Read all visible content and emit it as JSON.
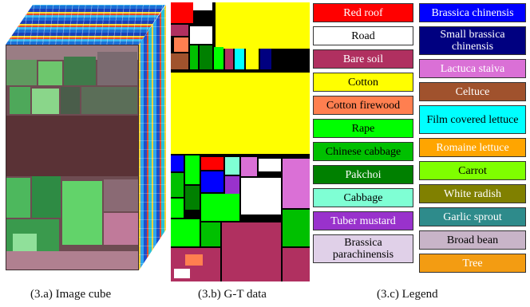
{
  "captions": {
    "a": "(3.a) Image cube",
    "b": "(3.b) G-T data",
    "c": "(3.c) Legend"
  },
  "legend": {
    "left": [
      {
        "label": "Red roof",
        "bg": "#ff0000",
        "fg": "#ffffff"
      },
      {
        "label": "Road",
        "bg": "#ffffff",
        "fg": "#000000"
      },
      {
        "label": "Bare soil",
        "bg": "#b03060",
        "fg": "#ffffff"
      },
      {
        "label": "Cotton",
        "bg": "#ffff00",
        "fg": "#000000"
      },
      {
        "label": "Cotton firewood",
        "bg": "#ff7f50",
        "fg": "#000000"
      },
      {
        "label": "Rape",
        "bg": "#00ff00",
        "fg": "#000000"
      },
      {
        "label": "Chinese cabbage",
        "bg": "#00c000",
        "fg": "#000000"
      },
      {
        "label": "Pakchoi",
        "bg": "#008000",
        "fg": "#ffffff"
      },
      {
        "label": "Cabbage",
        "bg": "#7fffd4",
        "fg": "#000000"
      },
      {
        "label": "Tuber mustard",
        "bg": "#9932cc",
        "fg": "#ffffff"
      },
      {
        "label": "Brassica parachinensis",
        "bg": "#e0d0e8",
        "fg": "#000000"
      }
    ],
    "right": [
      {
        "label": "Brassica chinensis",
        "bg": "#0000ff",
        "fg": "#ffffff"
      },
      {
        "label": "Small brassica chinensis",
        "bg": "#000080",
        "fg": "#ffffff"
      },
      {
        "label": "Lactuca staiva",
        "bg": "#da70d6",
        "fg": "#ffffff"
      },
      {
        "label": "Celtuce",
        "bg": "#a0522d",
        "fg": "#ffffff"
      },
      {
        "label": "Film covered lettuce",
        "bg": "#00ffff",
        "fg": "#000000"
      },
      {
        "label": "Romaine lettuce",
        "bg": "#ffa500",
        "fg": "#ffffff"
      },
      {
        "label": "Carrot",
        "bg": "#7fff00",
        "fg": "#000000"
      },
      {
        "label": "White radish",
        "bg": "#808000",
        "fg": "#ffffff"
      },
      {
        "label": "Garlic sprout",
        "bg": "#2e8b8b",
        "fg": "#ffffff"
      },
      {
        "label": "Broad bean",
        "bg": "#c8b4c8",
        "fg": "#000000"
      },
      {
        "label": "Tree",
        "bg": "#f39c12",
        "fg": "#ffffff"
      }
    ]
  }
}
